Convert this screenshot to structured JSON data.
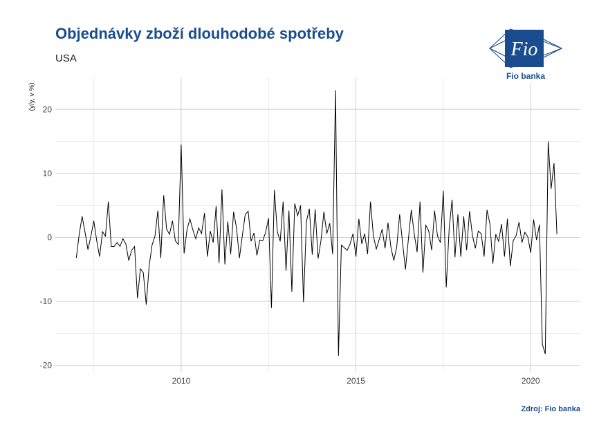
{
  "header": {
    "title": "Objednávky zboží dlouhodobé spotřeby",
    "subtitle": "USA",
    "source": "Zdroj: Fio banka"
  },
  "logo": {
    "mark": "Fio",
    "name": "Fio banka",
    "color": "#1a4d8f"
  },
  "chart_data": {
    "type": "line",
    "title": "Objednávky zboží dlouhodobé spotřeby",
    "subtitle": "USA",
    "ylabel": "(y/y, v %)",
    "xlabel": "",
    "xlim": [
      2006.4,
      2021.4
    ],
    "ylim": [
      -21,
      25
    ],
    "x_ticks": [
      2010,
      2015,
      2020
    ],
    "y_ticks": [
      -20,
      -10,
      0,
      10,
      20
    ],
    "grid": true,
    "line_color": "#000000",
    "series": [
      {
        "start": 2007.0,
        "step_months": 1,
        "values": [
          -3.2,
          0.5,
          3.3,
          0.8,
          -1.9,
          0.2,
          2.6,
          -0.5,
          -3.0,
          0.9,
          0.2,
          5.6,
          -1.4,
          -1.4,
          -0.8,
          -1.4,
          -0.2,
          -1.0,
          -3.6,
          -2.0,
          -1.4,
          -9.5,
          -4.9,
          -5.5,
          -10.5,
          -4.5,
          -1.2,
          0.2,
          4.2,
          -3.2,
          6.6,
          1.3,
          0.5,
          2.6,
          -0.5,
          -1.1,
          14.5,
          -2.5,
          1.2,
          2.9,
          1.2,
          -0.2,
          1.5,
          0.6,
          3.8,
          -3.0,
          1.0,
          -0.8,
          4.9,
          -4.0,
          7.5,
          -4.2,
          2.5,
          -2.6,
          4.0,
          1.5,
          -3.2,
          0.3,
          3.6,
          4.1,
          -0.6,
          0.7,
          -2.8,
          -0.4,
          -0.5,
          0.8,
          3.0,
          -11.0,
          7.4,
          0.9,
          -0.6,
          5.6,
          -5.2,
          4.2,
          -8.5,
          5.3,
          3.4,
          5.0,
          -10.1,
          2.5,
          4.5,
          -2.7,
          4.4,
          -3.3,
          -0.5,
          4.0,
          0.6,
          2.2,
          -2.6,
          23.0,
          -18.5,
          -1.2,
          -1.6,
          -2.0,
          -1.0,
          0.6,
          -3.0,
          2.9,
          -1.0,
          0.6,
          -2.6,
          5.6,
          0.2,
          -1.8,
          -0.3,
          1.3,
          -1.7,
          2.3,
          -1.5,
          -3.6,
          -1.5,
          3.6,
          -0.8,
          -5.0,
          -0.3,
          4.3,
          0.6,
          -2.3,
          5.6,
          -5.5,
          1.9,
          1.0,
          -2.0,
          4.2,
          0.2,
          -0.8,
          7.3,
          -7.8,
          1.3,
          5.9,
          -3.1,
          3.6,
          -3.0,
          3.3,
          -2.0,
          4.1,
          0.3,
          -1.7,
          1.0,
          0.6,
          -3.0,
          4.3,
          2.1,
          -4.1,
          0.5,
          -0.6,
          2.1,
          -3.0,
          2.9,
          -4.5,
          -0.5,
          0.3,
          2.4,
          -0.8,
          0.8,
          0.1,
          -2.4,
          2.8,
          -0.4,
          2.0,
          -16.7,
          -18.2,
          15.0,
          7.6,
          11.6,
          0.5
        ]
      }
    ]
  }
}
